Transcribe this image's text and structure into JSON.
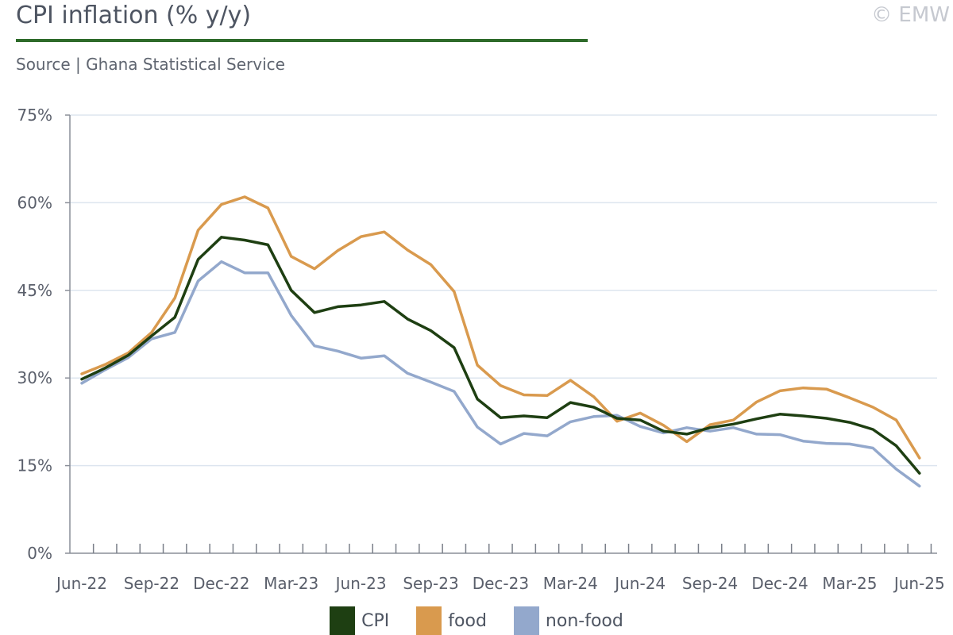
{
  "header": {
    "title": "CPI inflation (% y/y)",
    "source": "Source | Ghana Statistical Service",
    "copyright": "© EMW",
    "accent_color": "#2e6b2a"
  },
  "chart_data": {
    "type": "line",
    "x": [
      "Jun-22",
      "Jul-22",
      "Aug-22",
      "Sep-22",
      "Oct-22",
      "Nov-22",
      "Dec-22",
      "Jan-23",
      "Feb-23",
      "Mar-23",
      "Apr-23",
      "May-23",
      "Jun-23",
      "Jul-23",
      "Aug-23",
      "Sep-23",
      "Oct-23",
      "Nov-23",
      "Dec-23",
      "Jan-24",
      "Feb-24",
      "Mar-24",
      "Apr-24",
      "May-24",
      "Jun-24",
      "Jul-24",
      "Aug-24",
      "Sep-24",
      "Oct-24",
      "Nov-24",
      "Dec-24",
      "Jan-25",
      "Feb-25",
      "Mar-25",
      "Apr-25",
      "May-25",
      "Jun-25"
    ],
    "xticks": [
      "Jun-22",
      "Sep-22",
      "Dec-22",
      "Mar-23",
      "Jun-23",
      "Sep-23",
      "Dec-23",
      "Mar-24",
      "Jun-24",
      "Sep-24",
      "Dec-24",
      "Mar-25",
      "Jun-25"
    ],
    "ylim": [
      0,
      75
    ],
    "yticks": [
      "0%",
      "15%",
      "30%",
      "45%",
      "60%",
      "75%"
    ],
    "ytick_values": [
      0,
      15,
      30,
      45,
      60,
      75
    ],
    "grid": true,
    "legend_position": "bottom",
    "series": [
      {
        "name": "CPI",
        "color": "#1e3f12",
        "values": [
          29.8,
          31.7,
          33.9,
          37.2,
          40.4,
          50.3,
          54.1,
          53.6,
          52.8,
          45.0,
          41.2,
          42.2,
          42.5,
          43.1,
          40.1,
          38.1,
          35.2,
          26.4,
          23.2,
          23.5,
          23.2,
          25.8,
          25.0,
          23.1,
          22.8,
          20.9,
          20.4,
          21.5,
          22.1,
          23.0,
          23.8,
          23.5,
          23.1,
          22.4,
          21.2,
          18.4,
          13.7
        ]
      },
      {
        "name": "food",
        "color": "#d99a4e",
        "values": [
          30.7,
          32.3,
          34.3,
          37.8,
          43.7,
          55.3,
          59.7,
          61.0,
          59.1,
          50.8,
          48.7,
          51.8,
          54.2,
          55.0,
          51.9,
          49.4,
          44.8,
          32.2,
          28.7,
          27.1,
          27.0,
          29.6,
          26.8,
          22.6,
          24.0,
          21.9,
          19.1,
          22.0,
          22.8,
          25.9,
          27.8,
          28.3,
          28.1,
          26.6,
          25.0,
          22.8,
          16.3
        ]
      },
      {
        "name": "non-food",
        "color": "#93a8cc",
        "values": [
          29.1,
          31.4,
          33.5,
          36.7,
          37.8,
          46.6,
          49.9,
          48.0,
          48.0,
          40.7,
          35.5,
          34.6,
          33.4,
          33.8,
          30.8,
          29.3,
          27.7,
          21.6,
          18.7,
          20.5,
          20.1,
          22.5,
          23.4,
          23.6,
          21.7,
          20.6,
          21.5,
          20.9,
          21.5,
          20.4,
          20.3,
          19.2,
          18.8,
          18.7,
          18.0,
          14.4,
          11.5
        ]
      }
    ]
  }
}
